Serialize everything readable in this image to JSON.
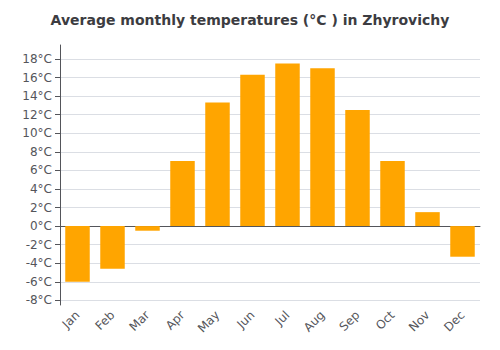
{
  "chart_data": {
    "type": "bar",
    "title": "Average monthly temperatures (°C ) in Zhyrovichy",
    "categories": [
      "Jan",
      "Feb",
      "Mar",
      "Apr",
      "May",
      "Jun",
      "Jul",
      "Aug",
      "Sep",
      "Oct",
      "Nov",
      "Dec"
    ],
    "values": [
      -6.0,
      -4.6,
      -0.5,
      7.0,
      13.3,
      16.3,
      17.5,
      17.0,
      12.5,
      7.0,
      1.5,
      -3.3
    ],
    "color": "#FFA500",
    "ylim": [
      -8.5,
      19.5
    ],
    "yticks": [
      {
        "value": -8,
        "label": "-8°C"
      },
      {
        "value": -6,
        "label": "-6°C"
      },
      {
        "value": -4,
        "label": "-4°C"
      },
      {
        "value": -2,
        "label": "-2°C"
      },
      {
        "value": 0,
        "label": "0°C"
      },
      {
        "value": 2,
        "label": "2°C"
      },
      {
        "value": 4,
        "label": "4°C"
      },
      {
        "value": 6,
        "label": "6°C"
      },
      {
        "value": 8,
        "label": "8°C"
      },
      {
        "value": 10,
        "label": "10°C"
      },
      {
        "value": 12,
        "label": "12°C"
      },
      {
        "value": 14,
        "label": "14°C"
      },
      {
        "value": 16,
        "label": "16°C"
      },
      {
        "value": 18,
        "label": "18°C"
      }
    ],
    "grid": true
  }
}
